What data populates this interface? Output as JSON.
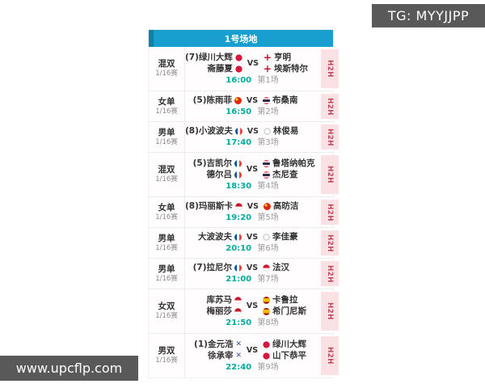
{
  "overlays": {
    "tg_label": "TG: MYYJJPP",
    "site_label": "www.upcflp.com"
  },
  "court": {
    "title": "1号场地"
  },
  "labels": {
    "vs": "VS",
    "h2h": "H2H"
  },
  "colors": {
    "header_blue": "#189fd0",
    "time_teal": "#00ab9f",
    "h2h_bg": "#fae2e4",
    "h2h_text": "#c5475a",
    "overlay_gray": "#595959"
  },
  "matches": [
    {
      "type": "混双",
      "round": "1/16赛",
      "size": "tall",
      "left": [
        {
          "name": "(7)绿川大辉",
          "flag": "japan"
        },
        {
          "name": "斋藤夏",
          "flag": "japan"
        }
      ],
      "right": [
        {
          "name": "亨明",
          "flag": "denmark"
        },
        {
          "name": "埃斯特尔",
          "flag": "denmark"
        }
      ],
      "time": "16:00",
      "game": "第1场"
    },
    {
      "type": "女单",
      "round": "1/16赛",
      "size": "short",
      "left": [
        {
          "name": "(5)陈雨菲",
          "flag": "china"
        }
      ],
      "right": [
        {
          "name": "布桑南",
          "flag": "thailand"
        }
      ],
      "time": "16:50",
      "game": "第2场"
    },
    {
      "type": "男单",
      "round": "1/16赛",
      "size": "short",
      "left": [
        {
          "name": "(8)小波波夫",
          "flag": "france"
        }
      ],
      "right": [
        {
          "name": "林俊易",
          "flag": "taipei"
        }
      ],
      "time": "17:40",
      "game": "第3场"
    },
    {
      "type": "混双",
      "round": "1/16赛",
      "size": "tall",
      "left": [
        {
          "name": "(5)吉凯尔",
          "flag": "france"
        },
        {
          "name": "德尔吕",
          "flag": "france"
        }
      ],
      "right": [
        {
          "name": "鲁塔纳帕克",
          "flag": "thailand"
        },
        {
          "name": "杰尼查",
          "flag": "thailand"
        }
      ],
      "time": "18:30",
      "game": "第4场"
    },
    {
      "type": "女单",
      "round": "1/16赛",
      "size": "short",
      "left": [
        {
          "name": "(8)玛丽斯卡",
          "flag": "indonesia"
        }
      ],
      "right": [
        {
          "name": "高昉洁",
          "flag": "china"
        }
      ],
      "time": "19:20",
      "game": "第5场"
    },
    {
      "type": "男单",
      "round": "1/16赛",
      "size": "short",
      "left": [
        {
          "name": "大波波夫",
          "flag": "france"
        }
      ],
      "right": [
        {
          "name": "李佳豪",
          "flag": "taipei"
        }
      ],
      "time": "20:10",
      "game": "第6场"
    },
    {
      "type": "男单",
      "round": "1/16赛",
      "size": "short",
      "left": [
        {
          "name": "(7)拉尼尔",
          "flag": "france"
        }
      ],
      "right": [
        {
          "name": "法汉",
          "flag": "indonesia"
        }
      ],
      "time": "21:00",
      "game": "第7场"
    },
    {
      "type": "女双",
      "round": "1/16赛",
      "size": "tall",
      "left": [
        {
          "name": "库苏马",
          "flag": "indonesia"
        },
        {
          "name": "梅丽莎",
          "flag": "indonesia"
        }
      ],
      "right": [
        {
          "name": "卡鲁拉",
          "flag": "spain"
        },
        {
          "name": "希门尼斯",
          "flag": "spain"
        }
      ],
      "time": "21:50",
      "game": "第8场"
    },
    {
      "type": "男双",
      "round": "1/16赛",
      "size": "tall",
      "left": [
        {
          "name": "(1)金元浩",
          "flag": "korea"
        },
        {
          "name": "徐承宰",
          "flag": "korea"
        }
      ],
      "right": [
        {
          "name": "绿川大辉",
          "flag": "japan"
        },
        {
          "name": "山下恭平",
          "flag": "japan"
        }
      ],
      "time": "22:40",
      "game": "第9场"
    }
  ]
}
